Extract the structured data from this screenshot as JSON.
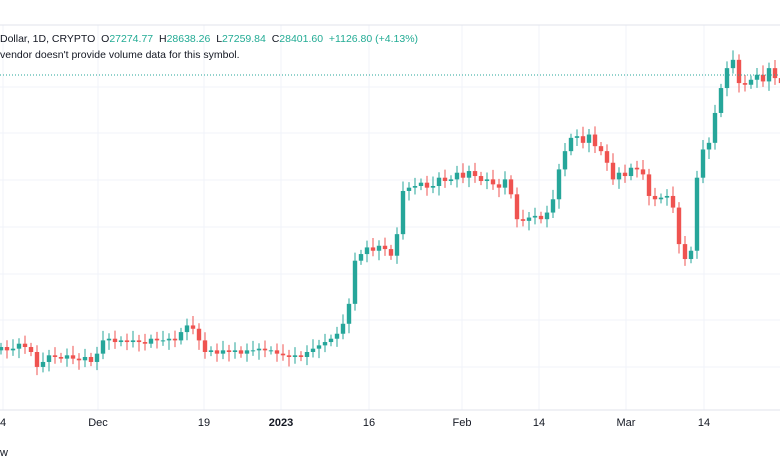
{
  "legend": {
    "symbol": "Dollar, 1D, CRYPTO",
    "o_label": "O",
    "o": "27274.77",
    "h_label": "H",
    "h": "28638.26",
    "l_label": "L",
    "l": "27259.84",
    "c_label": "C",
    "c": "28401.60",
    "change": "+1126.80 (+4.13%)"
  },
  "notice": "vendor doesn't provide volume data for this symbol.",
  "footer": "w",
  "colors": {
    "up": "#26a69a",
    "down": "#ef5350",
    "grid": "#f0f3fa",
    "price_line": "#26a69a"
  },
  "chart_data": {
    "type": "candlestick",
    "x_tick_labels": [
      "4",
      "Dec",
      "19",
      "2023",
      "16",
      "Feb",
      "14",
      "Mar",
      "14"
    ],
    "grid": true,
    "closes": [
      20.8,
      20.6,
      20.7,
      21.0,
      20.8,
      20.5,
      19.6,
      19.9,
      20.3,
      20.2,
      20.1,
      20.3,
      20.1,
      20.0,
      20.2,
      19.9,
      20.4,
      21.2,
      21.3,
      21.1,
      21.2,
      21.1,
      21.2,
      21.1,
      21.0,
      21.3,
      21.2,
      21.2,
      21.3,
      21.2,
      21.7,
      22.1,
      21.9,
      21.2,
      20.5,
      20.6,
      20.4,
      20.6,
      20.5,
      20.6,
      20.4,
      20.6,
      20.6,
      20.7,
      20.6,
      20.6,
      20.4,
      20.3,
      20.2,
      20.3,
      20.2,
      20.5,
      20.7,
      20.9,
      21.1,
      21.3,
      21.6,
      22.2,
      23.4,
      26.0,
      26.4,
      26.8,
      26.6,
      26.9,
      26.7,
      26.3,
      27.6,
      30.2,
      30.4,
      30.5,
      30.7,
      30.4,
      30.5,
      31.0,
      30.8,
      30.9,
      31.3,
      31.0,
      31.4,
      31.1,
      30.8,
      30.9,
      30.6,
      30.4,
      30.9,
      30.0,
      28.5,
      28.4,
      28.6,
      28.7,
      28.5,
      28.9,
      29.7,
      31.5,
      32.6,
      33.4,
      33.5,
      33.1,
      33.6,
      32.9,
      32.6,
      31.9,
      30.9,
      31.3,
      31.1,
      31.6,
      31.5,
      31.2,
      29.9,
      29.7,
      29.8,
      29.9,
      29.2,
      27.0,
      26.1,
      26.6,
      31.0,
      32.7,
      33.1,
      34.9,
      36.4,
      37.6,
      38.1,
      36.7,
      36.6,
      36.9,
      37.2,
      36.8,
      37.6,
      37.0,
      36.7
    ],
    "opens": [
      20.6,
      20.8,
      20.6,
      20.7,
      21.0,
      20.8,
      20.5,
      19.6,
      19.9,
      20.3,
      20.2,
      20.1,
      20.3,
      20.1,
      20.0,
      20.2,
      19.9,
      20.4,
      21.2,
      21.3,
      21.1,
      21.2,
      21.1,
      21.2,
      21.1,
      21.0,
      21.3,
      21.2,
      21.2,
      21.3,
      21.2,
      21.7,
      22.1,
      21.9,
      21.2,
      20.5,
      20.6,
      20.4,
      20.6,
      20.5,
      20.6,
      20.4,
      20.6,
      20.6,
      20.7,
      20.6,
      20.6,
      20.4,
      20.3,
      20.2,
      20.3,
      20.2,
      20.5,
      20.7,
      20.9,
      21.1,
      21.3,
      21.6,
      22.2,
      23.4,
      26.0,
      26.4,
      26.8,
      26.6,
      26.9,
      26.7,
      26.3,
      27.6,
      30.2,
      30.4,
      30.5,
      30.7,
      30.4,
      30.5,
      31.0,
      30.8,
      30.9,
      31.3,
      31.0,
      31.4,
      31.1,
      30.8,
      30.9,
      30.6,
      30.4,
      30.9,
      30.0,
      28.5,
      28.4,
      28.6,
      28.7,
      28.5,
      28.9,
      29.7,
      31.5,
      32.6,
      33.4,
      33.5,
      33.1,
      33.6,
      32.9,
      32.6,
      31.9,
      30.9,
      31.3,
      31.1,
      31.6,
      31.5,
      31.2,
      29.9,
      29.7,
      29.8,
      29.9,
      29.2,
      27.0,
      26.1,
      26.6,
      31.0,
      32.7,
      33.1,
      34.9,
      36.4,
      37.6,
      38.1,
      36.7,
      36.6,
      36.9,
      37.2,
      36.8,
      37.6,
      37.0
    ]
  }
}
